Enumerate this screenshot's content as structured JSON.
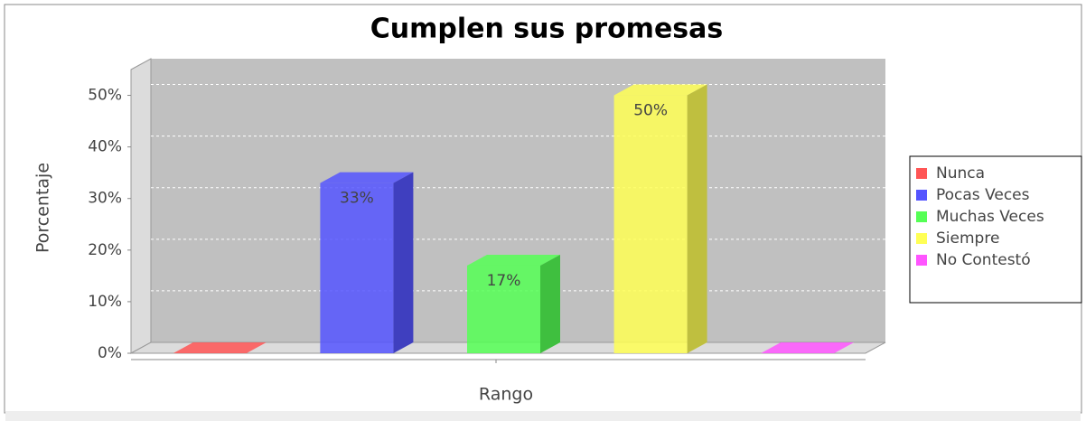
{
  "chart_data": {
    "type": "bar3d",
    "title": "Cumplen sus promesas",
    "x_label": "Rango",
    "y_label": "Porcentaje",
    "series": [
      {
        "name": "Nunca",
        "color": "#ff5555",
        "values": [
          0
        ]
      },
      {
        "name": "Pocas Veces",
        "color": "#5555ff",
        "values": [
          33
        ],
        "value_labels": [
          "33%"
        ]
      },
      {
        "name": "Muchas Veces",
        "color": "#55ff55",
        "values": [
          17
        ],
        "value_labels": [
          "17%"
        ]
      },
      {
        "name": "Siempre",
        "color": "#ffff55",
        "values": [
          50
        ],
        "value_labels": [
          "50%"
        ]
      },
      {
        "name": "No Contestó",
        "color": "#ff55ff",
        "values": [
          0
        ]
      }
    ],
    "ylim": [
      0,
      55
    ],
    "yticks": [
      {
        "value": 0,
        "label": "0%"
      },
      {
        "value": 10,
        "label": "10%"
      },
      {
        "value": 20,
        "label": "20%"
      },
      {
        "value": 30,
        "label": "30%"
      },
      {
        "value": 40,
        "label": "40%"
      },
      {
        "value": 50,
        "label": "50%"
      }
    ],
    "grid": true,
    "legend": "right"
  }
}
